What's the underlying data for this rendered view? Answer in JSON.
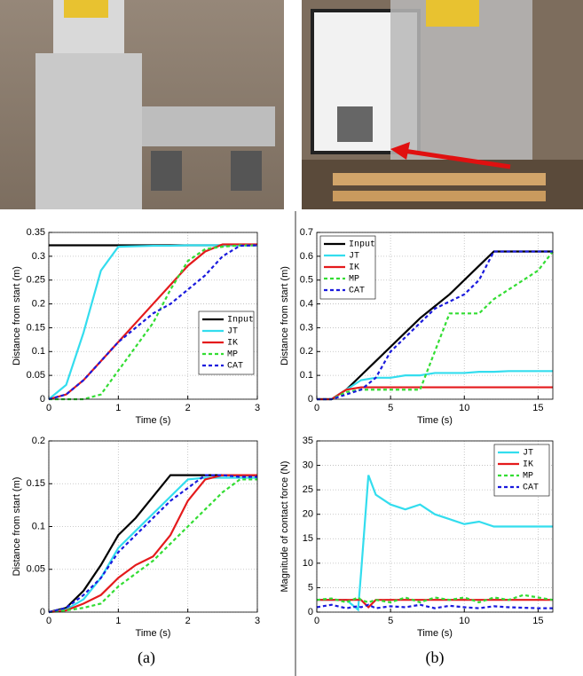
{
  "captions": [
    "(a)",
    "(b)"
  ],
  "chart_data": [
    {
      "type": "line",
      "xlabel": "Time (s)",
      "ylabel": "Distance from start (m)",
      "x": [
        0,
        0.25,
        0.5,
        0.75,
        1,
        1.25,
        1.5,
        1.75,
        2,
        2.25,
        2.5,
        2.75,
        3
      ],
      "xlim": [
        0,
        3
      ],
      "xticks": [
        0,
        1,
        2,
        3
      ],
      "ylim": [
        0,
        0.35
      ],
      "yticks": [
        0,
        0.05,
        0.1,
        0.15,
        0.2,
        0.25,
        0.3,
        0.35
      ],
      "grid": true,
      "legend": "lower right",
      "series": [
        {
          "name": "Input",
          "color": "#000000",
          "dashed": false,
          "values": [
            0.323,
            0.323,
            0.323,
            0.323,
            0.323,
            0.323,
            0.323,
            0.323,
            0.323,
            0.323,
            0.323,
            0.323,
            0.323
          ]
        },
        {
          "name": "JT",
          "color": "#33ddee",
          "dashed": false,
          "values": [
            0,
            0.03,
            0.14,
            0.27,
            0.32,
            0.321,
            0.322,
            0.322,
            0.323,
            0.323,
            0.323,
            0.323,
            0.323
          ]
        },
        {
          "name": "IK",
          "color": "#e41a1c",
          "dashed": false,
          "values": [
            0,
            0.01,
            0.04,
            0.08,
            0.12,
            0.16,
            0.2,
            0.24,
            0.28,
            0.31,
            0.325,
            0.325,
            0.325
          ]
        },
        {
          "name": "MP",
          "color": "#33dd33",
          "dashed": true,
          "values": [
            0,
            0,
            0,
            0.01,
            0.06,
            0.11,
            0.16,
            0.23,
            0.29,
            0.315,
            0.32,
            0.323,
            0.323
          ]
        },
        {
          "name": "CAT",
          "color": "#1a1add",
          "dashed": true,
          "values": [
            0,
            0.01,
            0.04,
            0.08,
            0.12,
            0.15,
            0.18,
            0.2,
            0.23,
            0.26,
            0.3,
            0.322,
            0.323
          ]
        }
      ]
    },
    {
      "type": "line",
      "xlabel": "Time (s)",
      "ylabel": "Distance from start (m)",
      "x": [
        0,
        1,
        2,
        3,
        4,
        5,
        6,
        7,
        8,
        9,
        10,
        11,
        12,
        13,
        14,
        15,
        16
      ],
      "xlim": [
        0,
        16
      ],
      "xticks": [
        0,
        5,
        10,
        15
      ],
      "ylim": [
        0,
        0.7
      ],
      "yticks": [
        0,
        0.1,
        0.2,
        0.3,
        0.4,
        0.5,
        0.6,
        0.7
      ],
      "grid": true,
      "legend": "upper left",
      "series": [
        {
          "name": "Input",
          "color": "#000000",
          "dashed": false,
          "values": [
            0,
            0,
            0.04,
            0.1,
            0.16,
            0.22,
            0.28,
            0.34,
            0.39,
            0.44,
            0.5,
            0.56,
            0.62,
            0.62,
            0.62,
            0.62,
            0.62
          ]
        },
        {
          "name": "JT",
          "color": "#33ddee",
          "dashed": false,
          "values": [
            0,
            0,
            0.04,
            0.08,
            0.09,
            0.09,
            0.1,
            0.1,
            0.11,
            0.11,
            0.11,
            0.115,
            0.115,
            0.118,
            0.118,
            0.118,
            0.118
          ]
        },
        {
          "name": "IK",
          "color": "#e41a1c",
          "dashed": false,
          "values": [
            0,
            0,
            0.04,
            0.05,
            0.05,
            0.05,
            0.05,
            0.05,
            0.05,
            0.05,
            0.05,
            0.05,
            0.05,
            0.05,
            0.05,
            0.05,
            0.05
          ]
        },
        {
          "name": "MP",
          "color": "#33dd33",
          "dashed": true,
          "values": [
            0,
            0,
            0.03,
            0.04,
            0.04,
            0.04,
            0.04,
            0.04,
            0.2,
            0.36,
            0.36,
            0.36,
            0.42,
            0.46,
            0.5,
            0.54,
            0.62
          ]
        },
        {
          "name": "CAT",
          "color": "#1a1add",
          "dashed": true,
          "values": [
            0,
            0,
            0.02,
            0.04,
            0.09,
            0.2,
            0.26,
            0.32,
            0.38,
            0.41,
            0.44,
            0.5,
            0.62,
            0.62,
            0.62,
            0.62,
            0.62
          ]
        }
      ]
    },
    {
      "type": "line",
      "xlabel": "Time (s)",
      "ylabel": "Distance from start (m)",
      "x": [
        0,
        0.25,
        0.5,
        0.75,
        1,
        1.25,
        1.5,
        1.75,
        2,
        2.25,
        2.5,
        2.75,
        3
      ],
      "xlim": [
        0,
        3
      ],
      "xticks": [
        0,
        1,
        2,
        3
      ],
      "ylim": [
        0,
        0.2
      ],
      "yticks": [
        0,
        0.05,
        0.1,
        0.15,
        0.2
      ],
      "grid": true,
      "series": [
        {
          "color": "#000000",
          "dashed": false,
          "values": [
            0,
            0.005,
            0.025,
            0.055,
            0.09,
            0.11,
            0.135,
            0.16,
            0.16,
            0.16,
            0.16,
            0.16,
            0.16
          ]
        },
        {
          "color": "#33ddee",
          "dashed": false,
          "values": [
            0,
            0.003,
            0.015,
            0.04,
            0.075,
            0.095,
            0.115,
            0.135,
            0.155,
            0.157,
            0.157,
            0.157,
            0.157
          ]
        },
        {
          "color": "#e41a1c",
          "dashed": false,
          "values": [
            0,
            0.002,
            0.01,
            0.02,
            0.04,
            0.055,
            0.065,
            0.09,
            0.13,
            0.155,
            0.16,
            0.16,
            0.16
          ]
        },
        {
          "color": "#33dd33",
          "dashed": true,
          "values": [
            0,
            0.002,
            0.005,
            0.01,
            0.03,
            0.045,
            0.06,
            0.08,
            0.1,
            0.12,
            0.14,
            0.155,
            0.155
          ]
        },
        {
          "color": "#1a1add",
          "dashed": true,
          "values": [
            0,
            0.005,
            0.02,
            0.04,
            0.07,
            0.09,
            0.11,
            0.13,
            0.145,
            0.16,
            0.16,
            0.158,
            0.158
          ]
        }
      ]
    },
    {
      "type": "line",
      "xlabel": "Time (s)",
      "ylabel": "Magnitude of contact force (N)",
      "x": [
        0,
        1,
        2,
        2.8,
        3,
        3.5,
        4,
        5,
        6,
        7,
        8,
        9,
        10,
        11,
        12,
        13,
        14,
        15,
        16
      ],
      "xlim": [
        0,
        16
      ],
      "xticks": [
        0,
        5,
        10,
        15
      ],
      "ylim": [
        0,
        35
      ],
      "yticks": [
        0,
        5,
        10,
        15,
        20,
        25,
        30,
        35
      ],
      "grid": true,
      "legend": "upper right",
      "series": [
        {
          "name": "JT",
          "color": "#33ddee",
          "dashed": false,
          "values": [
            2.5,
            2.5,
            2.5,
            0.5,
            8,
            28,
            24,
            22,
            21,
            22,
            20,
            19,
            18,
            18.5,
            17.5,
            17.5,
            17.5,
            17.5,
            17.5
          ]
        },
        {
          "name": "IK",
          "color": "#e41a1c",
          "dashed": false,
          "values": [
            2.5,
            2.5,
            2.5,
            2.5,
            2.5,
            1,
            2.5,
            2.5,
            2.5,
            2.5,
            2.5,
            2.5,
            2.5,
            2.5,
            2.5,
            2.5,
            2.5,
            2.5,
            2.5
          ]
        },
        {
          "name": "MP",
          "color": "#33dd33",
          "dashed": true,
          "values": [
            2.5,
            2.8,
            2,
            3,
            2.5,
            2,
            2.5,
            2,
            3,
            2,
            3,
            2.5,
            3,
            2,
            3,
            2.5,
            3.5,
            3,
            2.5
          ]
        },
        {
          "name": "CAT",
          "color": "#1a1add",
          "dashed": true,
          "values": [
            1,
            1.5,
            0.8,
            1.2,
            1,
            1.5,
            0.8,
            1.2,
            1,
            1.5,
            0.8,
            1.3,
            1,
            0.8,
            1.2,
            1,
            0.9,
            0.8,
            0.8
          ]
        }
      ]
    }
  ]
}
